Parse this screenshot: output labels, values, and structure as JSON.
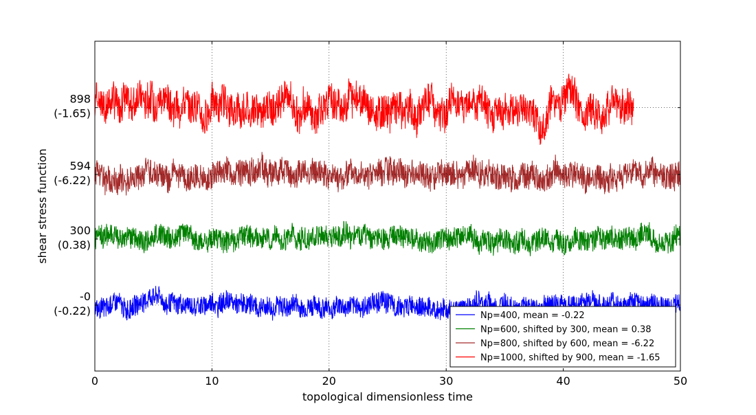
{
  "chart_data": {
    "type": "line",
    "title": "",
    "xlabel": "topological dimensionless time",
    "ylabel": "shear stress function",
    "xlim": [
      0,
      50
    ],
    "ylim": [
      -300,
      1200
    ],
    "xticks": [
      0,
      10,
      20,
      30,
      40,
      50
    ],
    "xtick_labels": [
      "0",
      "10",
      "20",
      "30",
      "40",
      "50"
    ],
    "yticks": [
      {
        "value": 0,
        "line1": "-0",
        "line2": "(-0.22)"
      },
      {
        "value": 300,
        "line1": "300",
        "line2": "(0.38)"
      },
      {
        "value": 594,
        "line1": "594",
        "line2": "(-6.22)"
      },
      {
        "value": 898,
        "line1": "898",
        "line2": "(-1.65)"
      }
    ],
    "grid": true,
    "legend_position": "lower-right",
    "series": [
      {
        "name": "Np=400, mean = -0.22",
        "color": "#0000ff",
        "x_end": 50,
        "center": -0.22,
        "noise_amplitude": 45,
        "wander_amplitude": 25,
        "min": -175,
        "max": 145
      },
      {
        "name": "Np=600, shifted by 300, mean = 0.38",
        "color": "#008000",
        "x_end": 50,
        "center": 300,
        "noise_amplitude": 50,
        "wander_amplitude": 25,
        "min": 130,
        "max": 470
      },
      {
        "name": "Np=800, shifted by 600, mean = -6.22",
        "color": "#a52a2a",
        "x_end": 50,
        "center": 594,
        "noise_amplitude": 60,
        "wander_amplitude": 30,
        "min": 345,
        "max": 900
      },
      {
        "name": "Np=1000, shifted by 900, mean = -1.65",
        "color": "#ff0000",
        "x_end": 46,
        "center": 898,
        "noise_amplitude": 75,
        "wander_amplitude": 60,
        "min": 620,
        "max": 1200
      }
    ]
  }
}
